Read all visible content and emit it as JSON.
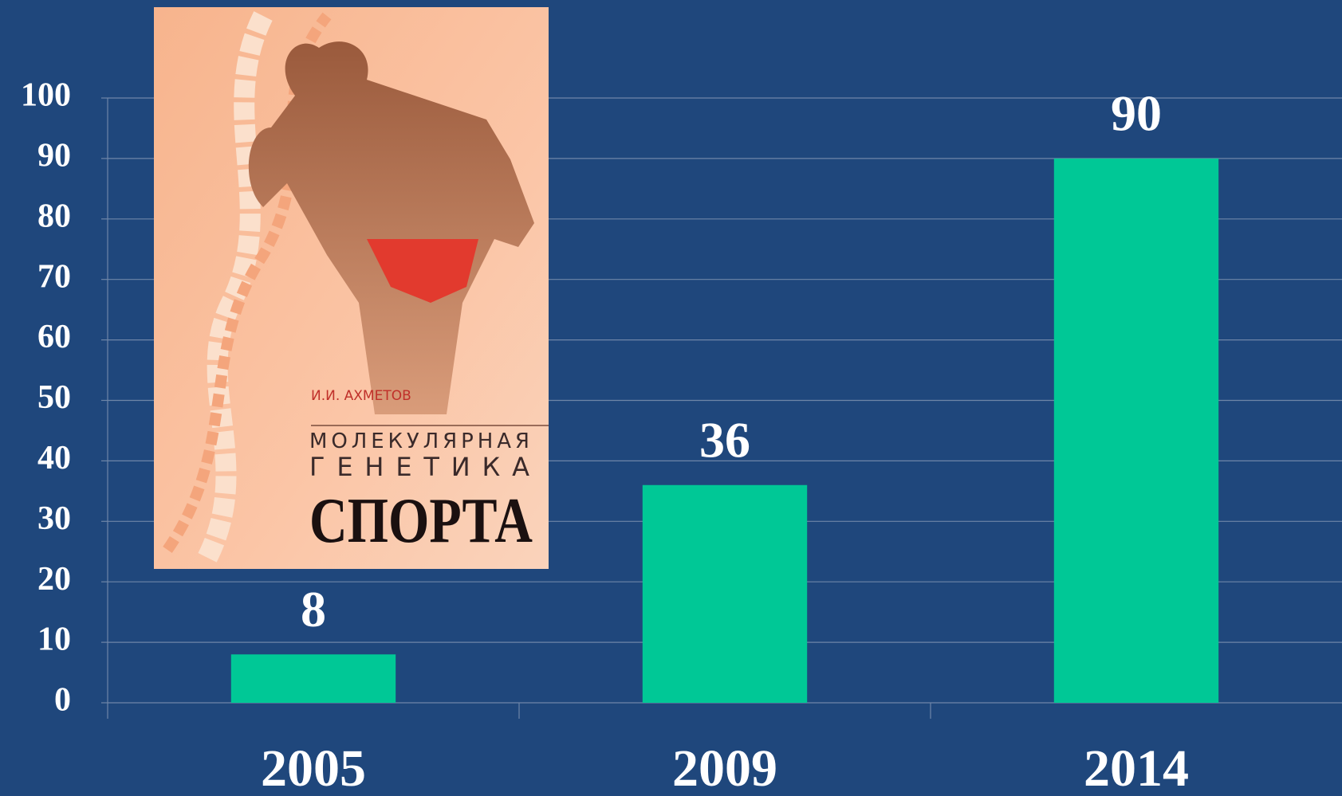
{
  "chart_data": {
    "type": "bar",
    "categories": [
      "2005",
      "2009",
      "2014"
    ],
    "values": [
      8,
      36,
      90
    ],
    "color": "#00c896",
    "ylim": [
      0,
      100
    ],
    "yticks": [
      0,
      10,
      20,
      30,
      40,
      50,
      60,
      70,
      80,
      90,
      100
    ],
    "grid": true,
    "data_labels": true
  },
  "book_cover": {
    "author": "И.И. АХМЕТОВ",
    "title_lines": [
      "МОЛЕКУЛЯРНАЯ",
      "ГЕНЕТИКА",
      "СПОРТА"
    ]
  }
}
